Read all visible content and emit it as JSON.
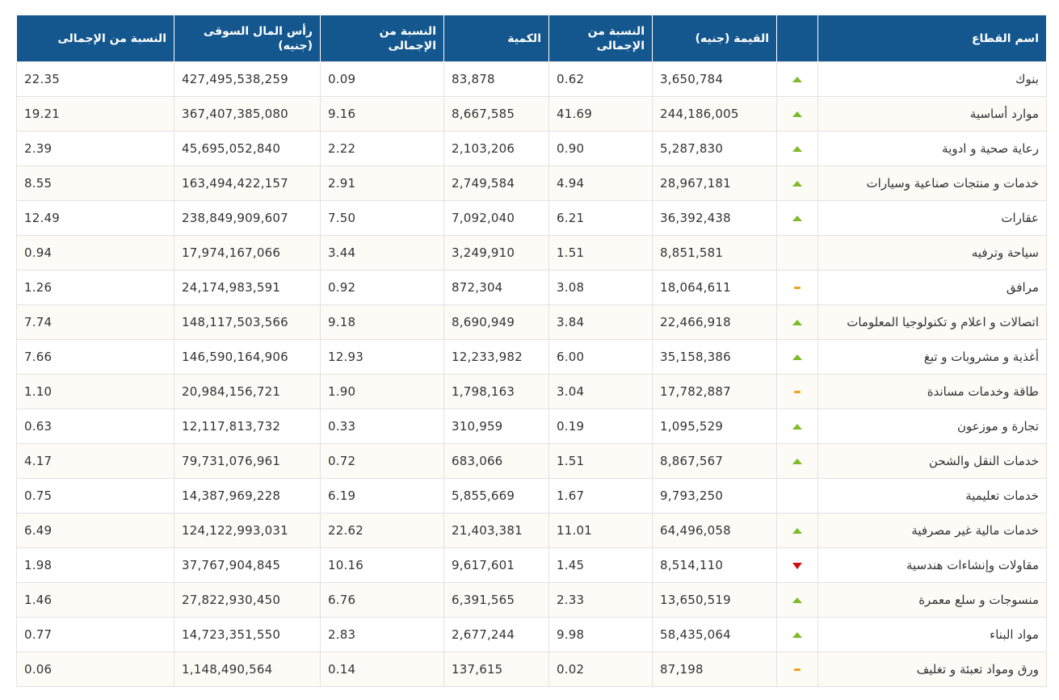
{
  "colors": {
    "header_bg": "#14578e",
    "up": "#7dbb2a",
    "down": "#cc1111",
    "flat": "#f0a020"
  },
  "headers": {
    "sector": "اسم القطاع",
    "value": "القيمة (جنيه)",
    "value_pct": "النسبة من الإجمالى",
    "quantity": "الكمية",
    "quantity_pct": "النسبة من الإجمالى",
    "market_cap": "رأس المال السوقى (جنيه)",
    "market_cap_pct": "النسبة من الإجمالى"
  },
  "rows": [
    {
      "sector": "بنوك",
      "trend": "up",
      "value": "3,650,784",
      "value_pct": "0.62",
      "quantity": "83,878",
      "quantity_pct": "0.09",
      "market_cap": "427,495,538,259",
      "market_cap_pct": "22.35"
    },
    {
      "sector": "موارد أساسية",
      "trend": "up",
      "value": "244,186,005",
      "value_pct": "41.69",
      "quantity": "8,667,585",
      "quantity_pct": "9.16",
      "market_cap": "367,407,385,080",
      "market_cap_pct": "19.21"
    },
    {
      "sector": "رعاية صحية و ادوية",
      "trend": "up",
      "value": "5,287,830",
      "value_pct": "0.90",
      "quantity": "2,103,206",
      "quantity_pct": "2.22",
      "market_cap": "45,695,052,840",
      "market_cap_pct": "2.39"
    },
    {
      "sector": "خدمات و منتجات صناعية وسيارات",
      "trend": "up",
      "value": "28,967,181",
      "value_pct": "4.94",
      "quantity": "2,749,584",
      "quantity_pct": "2.91",
      "market_cap": "163,494,422,157",
      "market_cap_pct": "8.55"
    },
    {
      "sector": "عقارات",
      "trend": "up",
      "value": "36,392,438",
      "value_pct": "6.21",
      "quantity": "7,092,040",
      "quantity_pct": "7.50",
      "market_cap": "238,849,909,607",
      "market_cap_pct": "12.49"
    },
    {
      "sector": "سياحة وترفيه",
      "trend": "none",
      "value": "8,851,581",
      "value_pct": "1.51",
      "quantity": "3,249,910",
      "quantity_pct": "3.44",
      "market_cap": "17,974,167,066",
      "market_cap_pct": "0.94"
    },
    {
      "sector": "مرافق",
      "trend": "flat",
      "value": "18,064,611",
      "value_pct": "3.08",
      "quantity": "872,304",
      "quantity_pct": "0.92",
      "market_cap": "24,174,983,591",
      "market_cap_pct": "1.26"
    },
    {
      "sector": "اتصالات و اعلام و تكنولوجيا المعلومات",
      "trend": "up",
      "value": "22,466,918",
      "value_pct": "3.84",
      "quantity": "8,690,949",
      "quantity_pct": "9.18",
      "market_cap": "148,117,503,566",
      "market_cap_pct": "7.74"
    },
    {
      "sector": "أغذية و مشروبات و تبغ",
      "trend": "up",
      "value": "35,158,386",
      "value_pct": "6.00",
      "quantity": "12,233,982",
      "quantity_pct": "12.93",
      "market_cap": "146,590,164,906",
      "market_cap_pct": "7.66"
    },
    {
      "sector": "طاقة وخدمات مساندة",
      "trend": "flat",
      "value": "17,782,887",
      "value_pct": "3.04",
      "quantity": "1,798,163",
      "quantity_pct": "1.90",
      "market_cap": "20,984,156,721",
      "market_cap_pct": "1.10"
    },
    {
      "sector": "تجارة و موزعون",
      "trend": "up",
      "value": "1,095,529",
      "value_pct": "0.19",
      "quantity": "310,959",
      "quantity_pct": "0.33",
      "market_cap": "12,117,813,732",
      "market_cap_pct": "0.63"
    },
    {
      "sector": "خدمات النقل والشحن",
      "trend": "up",
      "value": "8,867,567",
      "value_pct": "1.51",
      "quantity": "683,066",
      "quantity_pct": "0.72",
      "market_cap": "79,731,076,961",
      "market_cap_pct": "4.17"
    },
    {
      "sector": "خدمات تعليمية",
      "trend": "none",
      "value": "9,793,250",
      "value_pct": "1.67",
      "quantity": "5,855,669",
      "quantity_pct": "6.19",
      "market_cap": "14,387,969,228",
      "market_cap_pct": "0.75"
    },
    {
      "sector": "خدمات مالية غير مصرفية",
      "trend": "up",
      "value": "64,496,058",
      "value_pct": "11.01",
      "quantity": "21,403,381",
      "quantity_pct": "22.62",
      "market_cap": "124,122,993,031",
      "market_cap_pct": "6.49"
    },
    {
      "sector": "مقاولات وإنشاءات هندسية",
      "trend": "down",
      "value": "8,514,110",
      "value_pct": "1.45",
      "quantity": "9,617,601",
      "quantity_pct": "10.16",
      "market_cap": "37,767,904,845",
      "market_cap_pct": "1.98"
    },
    {
      "sector": "منسوجات و سلع معمرة",
      "trend": "up",
      "value": "13,650,519",
      "value_pct": "2.33",
      "quantity": "6,391,565",
      "quantity_pct": "6.76",
      "market_cap": "27,822,930,450",
      "market_cap_pct": "1.46"
    },
    {
      "sector": "مواد البناء",
      "trend": "up",
      "value": "58,435,064",
      "value_pct": "9.98",
      "quantity": "2,677,244",
      "quantity_pct": "2.83",
      "market_cap": "14,723,351,550",
      "market_cap_pct": "0.77"
    },
    {
      "sector": "ورق ومواد تعبئة و تغليف",
      "trend": "flat",
      "value": "87,198",
      "value_pct": "0.02",
      "quantity": "137,615",
      "quantity_pct": "0.14",
      "market_cap": "1,148,490,564",
      "market_cap_pct": "0.06"
    }
  ]
}
